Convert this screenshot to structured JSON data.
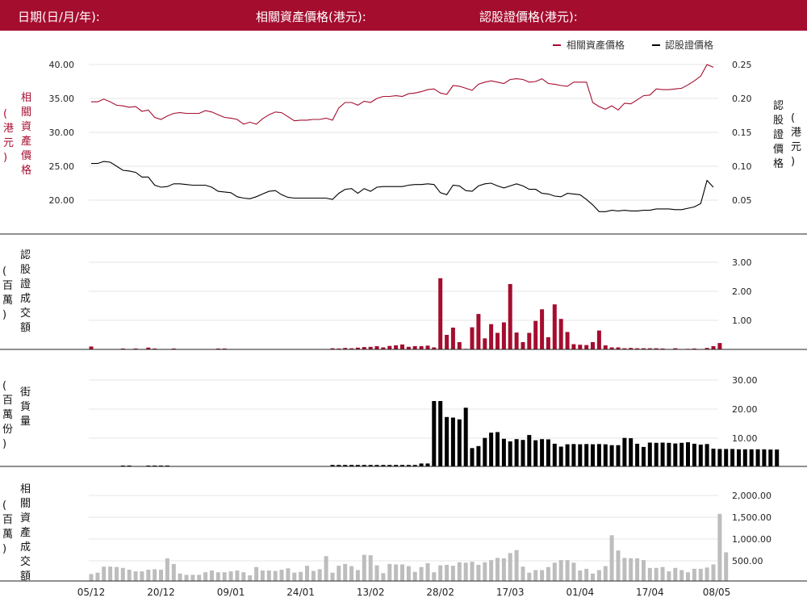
{
  "header": {
    "date_label": "日期(日/月/年):",
    "asset_price_label": "相關資產價格(港元):",
    "warrant_price_label": "認股證價格(港元):"
  },
  "colors": {
    "header_bg": "#a50d2f",
    "asset": "#a50d2f",
    "warrant": "#000000",
    "turnover_bar": "#bdbdbd",
    "grid": "#e6e6e6"
  },
  "legend": {
    "asset": "相關資產價格",
    "warrant": "認股證價格",
    "placement": "top-right"
  },
  "x_ticks": [
    "05/12",
    "20/12",
    "09/01",
    "24/01",
    "13/02",
    "28/02",
    "17/03",
    "01/04",
    "17/04",
    "08/05"
  ],
  "chart_data": [
    {
      "type": "line",
      "panel": "price",
      "series": [
        {
          "name": "相關資產價格",
          "axis": "left",
          "color": "#a50d2f",
          "values": [
            34.5,
            34.5,
            34.9,
            34.5,
            34.0,
            33.9,
            33.7,
            33.8,
            33.1,
            33.3,
            32.2,
            31.9,
            32.4,
            32.8,
            32.9,
            32.8,
            32.8,
            32.8,
            33.2,
            33.0,
            32.6,
            32.2,
            32.1,
            31.9,
            31.2,
            31.5,
            31.2,
            32.0,
            32.6,
            33.0,
            32.9,
            32.3,
            31.7,
            31.8,
            31.8,
            31.9,
            31.9,
            32.1,
            31.8,
            33.6,
            34.4,
            34.4,
            34.0,
            34.6,
            34.4,
            35.0,
            35.3,
            35.3,
            35.4,
            35.3,
            35.7,
            35.8,
            36.0,
            36.3,
            36.4,
            35.8,
            35.6,
            36.9,
            36.8,
            36.5,
            36.2,
            37.1,
            37.4,
            37.6,
            37.4,
            37.2,
            37.8,
            37.9,
            37.8,
            37.4,
            37.5,
            37.9,
            37.2,
            37.1,
            36.9,
            36.8,
            37.4,
            37.4,
            37.4,
            34.4,
            33.8,
            33.4,
            33.9,
            33.3,
            34.3,
            34.2,
            34.8,
            35.4,
            35.5,
            36.4,
            36.3,
            36.3,
            36.4,
            36.5,
            37.0,
            37.6,
            38.3,
            40.0,
            39.6
          ]
        },
        {
          "name": "認股證價格",
          "axis": "right",
          "color": "#000000",
          "values": [
            0.104,
            0.104,
            0.107,
            0.106,
            0.1,
            0.094,
            0.093,
            0.091,
            0.084,
            0.084,
            0.072,
            0.069,
            0.07,
            0.074,
            0.074,
            0.073,
            0.072,
            0.072,
            0.072,
            0.069,
            0.063,
            0.062,
            0.061,
            0.055,
            0.053,
            0.052,
            0.055,
            0.059,
            0.063,
            0.064,
            0.058,
            0.054,
            0.053,
            0.053,
            0.053,
            0.053,
            0.053,
            0.053,
            0.051,
            0.06,
            0.066,
            0.067,
            0.06,
            0.067,
            0.063,
            0.069,
            0.07,
            0.07,
            0.07,
            0.07,
            0.072,
            0.073,
            0.073,
            0.074,
            0.073,
            0.061,
            0.058,
            0.072,
            0.071,
            0.064,
            0.063,
            0.071,
            0.074,
            0.075,
            0.071,
            0.068,
            0.071,
            0.074,
            0.071,
            0.066,
            0.066,
            0.06,
            0.059,
            0.056,
            0.055,
            0.06,
            0.059,
            0.058,
            0.051,
            0.043,
            0.033,
            0.033,
            0.035,
            0.034,
            0.035,
            0.034,
            0.034,
            0.035,
            0.035,
            0.037,
            0.037,
            0.037,
            0.036,
            0.036,
            0.038,
            0.04,
            0.045,
            0.079,
            0.069
          ]
        }
      ],
      "y_left": {
        "label": "相關資產價格(港元)",
        "ticks": [
          "40.00",
          "35.00",
          "30.00",
          "25.00",
          "20.00"
        ],
        "range": [
          16.8,
          40.9
        ]
      },
      "y_right": {
        "label": "認股證價格(港元)",
        "ticks": [
          "0.25",
          "0.20",
          "0.15",
          "0.10",
          "0.05"
        ],
        "range": [
          0.012,
          0.263
        ]
      }
    },
    {
      "type": "bar",
      "panel": "warrant_turnover",
      "y_label": "認股證成交額(百萬)",
      "ticks": [
        "3.00",
        "2.00",
        "1.00"
      ],
      "range": [
        0,
        3.5
      ],
      "color": "#a50d2f",
      "values": [
        0.1,
        0,
        0,
        0,
        0,
        0.03,
        0,
        0.03,
        0,
        0.06,
        0.03,
        0,
        0,
        0.03,
        0,
        0,
        0,
        0,
        0,
        0,
        0.03,
        0.03,
        0,
        0,
        0,
        0,
        0,
        0,
        0,
        0,
        0,
        0,
        0,
        0,
        0,
        0,
        0,
        0,
        0.04,
        0.03,
        0.05,
        0.04,
        0.06,
        0.08,
        0.09,
        0.11,
        0.07,
        0.12,
        0.14,
        0.17,
        0.09,
        0.11,
        0.11,
        0.13,
        0.07,
        2.45,
        0.5,
        0.75,
        0.25,
        0.02,
        0.76,
        1.22,
        0.38,
        0.87,
        0.57,
        0.93,
        2.25,
        0.58,
        0.25,
        0.57,
        0.98,
        1.38,
        0.42,
        1.55,
        1.05,
        0.6,
        0.18,
        0.16,
        0.15,
        0.25,
        0.65,
        0.14,
        0.07,
        0.07,
        0.04,
        0.05,
        0.04,
        0.04,
        0.04,
        0.04,
        0.03,
        0,
        0.04,
        0,
        0.02,
        0.03,
        0,
        0.05,
        0.11,
        0.22
      ]
    },
    {
      "type": "bar",
      "panel": "outstanding",
      "y_label": "街貨量(百萬份)",
      "ticks": [
        "30.00",
        "20.00",
        "10.00"
      ],
      "range": [
        0,
        34.5
      ],
      "color": "#000000",
      "values": [
        0,
        0,
        0,
        0,
        0,
        0.3,
        0.3,
        0,
        0,
        0.3,
        0.3,
        0.3,
        0.3,
        0,
        0,
        0,
        0,
        0,
        0,
        0,
        0,
        0,
        0,
        0,
        0,
        0,
        0,
        0,
        0,
        0,
        0,
        0,
        0,
        0,
        0,
        0,
        0,
        0,
        0.5,
        0.5,
        0.5,
        0.5,
        0.5,
        0.5,
        0.5,
        0.5,
        0.5,
        0.5,
        0.5,
        0.5,
        0.5,
        0.5,
        1,
        1,
        22.5,
        22.5,
        17,
        16.8,
        16.2,
        20.2,
        6.3,
        7,
        9.8,
        11.6,
        11.8,
        9.5,
        8.6,
        9.4,
        9.1,
        10.8,
        9,
        9.4,
        9.3,
        7.8,
        6.8,
        7.6,
        7.7,
        7.6,
        7.7,
        7.6,
        7.7,
        7.6,
        7.3,
        7.3,
        9.8,
        9.7,
        7.8,
        6.7,
        8.2,
        8.1,
        8.2,
        8.1,
        7.9,
        8.1,
        8.3,
        7.8,
        7.5,
        7.7,
        6.1,
        6,
        6,
        6,
        5.9,
        5.9,
        5.9,
        5.9,
        5.9,
        5.8,
        5.8
      ]
    },
    {
      "type": "bar",
      "panel": "asset_turnover",
      "y_label": "相關資產成交額(百萬)",
      "ticks": [
        "2,000.00",
        "1,500.00",
        "1,000.00",
        "500.00"
      ],
      "range": [
        0,
        2300
      ],
      "color": "#bdbdbd",
      "values": [
        160,
        190,
        330,
        330,
        320,
        300,
        260,
        220,
        220,
        260,
        270,
        260,
        520,
        390,
        170,
        140,
        140,
        140,
        200,
        240,
        200,
        200,
        220,
        240,
        200,
        130,
        320,
        240,
        240,
        230,
        260,
        290,
        190,
        210,
        350,
        230,
        270,
        570,
        190,
        350,
        390,
        340,
        250,
        600,
        590,
        360,
        180,
        390,
        380,
        380,
        340,
        210,
        320,
        410,
        200,
        360,
        370,
        350,
        430,
        420,
        440,
        370,
        430,
        480,
        530,
        520,
        640,
        710,
        330,
        190,
        250,
        250,
        320,
        420,
        480,
        480,
        420,
        240,
        280,
        170,
        250,
        340,
        1050,
        700,
        530,
        520,
        520,
        480,
        300,
        300,
        320,
        220,
        300,
        250,
        200,
        280,
        280,
        310,
        380,
        1540,
        660
      ]
    }
  ]
}
